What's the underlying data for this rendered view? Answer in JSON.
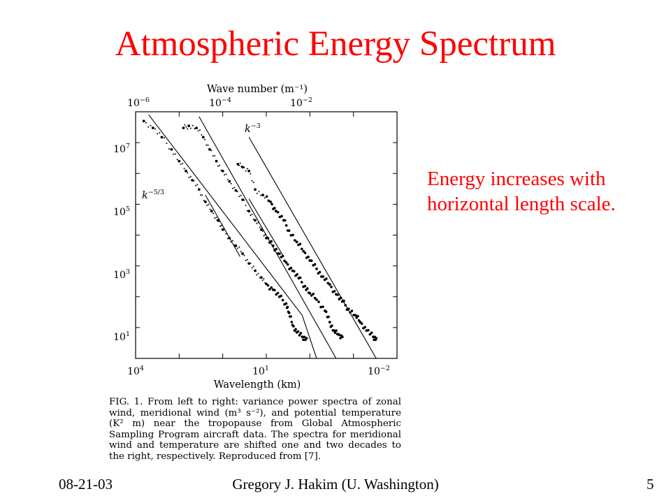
{
  "slide": {
    "title": "Atmospheric Energy Spectrum",
    "annotation": [
      "Energy increases with",
      "horizontal length scale."
    ],
    "footer": {
      "left": "08-21-03",
      "center": "Gregory J. Hakim (U. Washington)",
      "right": "5"
    }
  },
  "chart_data": {
    "type": "scatter",
    "title": "",
    "top_axis": {
      "label": "Wave number (m⁻¹)",
      "ticks": [
        {
          "base": "10",
          "exp": "−6"
        },
        {
          "base": "10",
          "exp": "−4"
        },
        {
          "base": "10",
          "exp": "−2"
        }
      ]
    },
    "bottom_axis": {
      "label": "Wavelength (km)",
      "log": true,
      "range_km": [
        10000,
        0.01
      ],
      "ticks": [
        {
          "base": "10",
          "exp": "4"
        },
        {
          "base": "10",
          "exp": "1"
        },
        {
          "base": "10",
          "exp": "−2"
        }
      ]
    },
    "left_axis": {
      "label": "",
      "log": true,
      "ticks": [
        {
          "base": "10",
          "exp": "7"
        },
        {
          "base": "10",
          "exp": "5"
        },
        {
          "base": "10",
          "exp": "3"
        },
        {
          "base": "10",
          "exp": "1"
        }
      ]
    },
    "ylim": [
      1,
      100000000
    ],
    "reference_lines": [
      {
        "label": "k",
        "exp": "−3",
        "slope": -3
      },
      {
        "label": "k",
        "exp": "−5/3",
        "slope": -1.6667
      }
    ],
    "series": [
      {
        "shift_decades": 0,
        "points": [
          [
            6500,
            50000000.0
          ],
          [
            4000,
            30000000.0
          ],
          [
            2500,
            15000000.0
          ],
          [
            1500,
            6000000.0
          ],
          [
            1000,
            2500000.0
          ],
          [
            700,
            1200000.0
          ],
          [
            500,
            600000.0
          ],
          [
            350,
            300000.0
          ],
          [
            250,
            120000.0
          ],
          [
            180,
            60000.0
          ],
          [
            130,
            30000.0
          ],
          [
            100,
            15000.0
          ],
          [
            70,
            8000.0
          ],
          [
            50,
            4500.0
          ],
          [
            35,
            2500.0
          ],
          [
            25,
            1200.0
          ],
          [
            18,
            700
          ],
          [
            13,
            420
          ],
          [
            10,
            260
          ],
          [
            7,
            170
          ],
          [
            5,
            100
          ],
          [
            3.5,
            60
          ],
          [
            3,
            30
          ],
          [
            2.5,
            12
          ],
          [
            2,
            7
          ],
          [
            1.5,
            5
          ],
          [
            1.2,
            4.5
          ]
        ]
      },
      {
        "shift_decades": 1,
        "points": [
          [
            800,
            30000000.0
          ],
          [
            600,
            35000000.0
          ],
          [
            400,
            30000000.0
          ],
          [
            280,
            15000000.0
          ],
          [
            200,
            6000000.0
          ],
          [
            140,
            2500000.0
          ],
          [
            100,
            1200000.0
          ],
          [
            70,
            550000.0
          ],
          [
            50,
            280000.0
          ],
          [
            35,
            140000.0
          ],
          [
            25,
            60000.0
          ],
          [
            18,
            30000.0
          ],
          [
            13,
            15000.0
          ],
          [
            10,
            8000.0
          ],
          [
            7,
            4500.0
          ],
          [
            5,
            2500.0
          ],
          [
            3.5,
            1300.0
          ],
          [
            2.5,
            700
          ],
          [
            1.8,
            400
          ],
          [
            1.3,
            220
          ],
          [
            1,
            130
          ],
          [
            0.7,
            80
          ],
          [
            0.45,
            35
          ],
          [
            0.35,
            15
          ],
          [
            0.28,
            8
          ],
          [
            0.22,
            6
          ],
          [
            0.18,
            5
          ]
        ]
      },
      {
        "shift_decades": 2,
        "points": [
          [
            45,
            2000000.0
          ],
          [
            35,
            1600000.0
          ],
          [
            25,
            1200000.0
          ],
          [
            18,
            300000.0
          ],
          [
            12,
            200000.0
          ],
          [
            8,
            120000.0
          ],
          [
            6,
            60000.0
          ],
          [
            4,
            30000.0
          ],
          [
            3,
            14000.0
          ],
          [
            2,
            6000.0
          ],
          [
            1.4,
            3000.0
          ],
          [
            1,
            1500.0
          ],
          [
            0.7,
            800
          ],
          [
            0.5,
            450
          ],
          [
            0.35,
            250
          ],
          [
            0.25,
            120
          ],
          [
            0.18,
            70
          ],
          [
            0.13,
            40
          ],
          [
            0.09,
            25
          ],
          [
            0.07,
            15
          ],
          [
            0.05,
            8
          ],
          [
            0.035,
            5
          ],
          [
            0.03,
            4.5
          ]
        ]
      }
    ]
  },
  "caption": {
    "text": "FIG. 1. From left to right: variance power spectra of zonal wind, meridional wind (m³ s⁻²), and potential temperature (K² m) near the tropopause from Global Atmospheric Sampling Program aircraft data. The spectra for meridional wind and temperature are shifted one and two decades to the right, respectively. Reproduced from [7]."
  }
}
